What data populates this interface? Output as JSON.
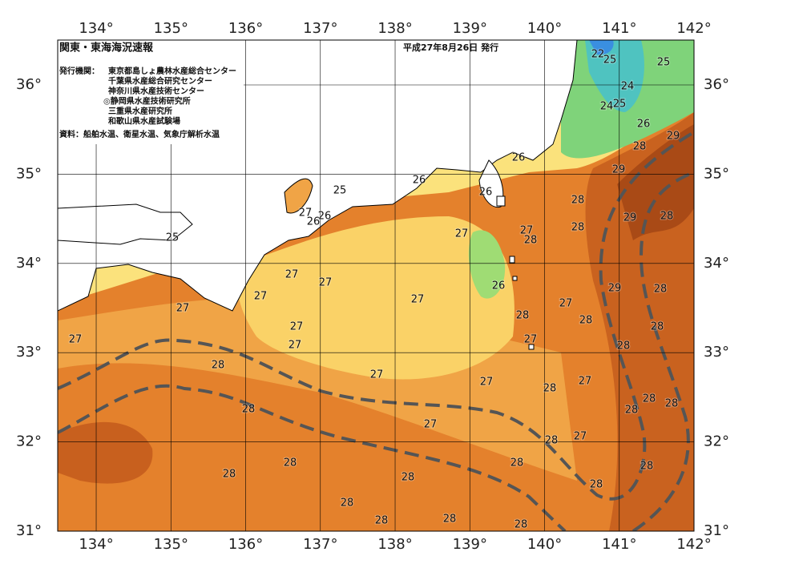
{
  "header": {
    "title": "関東・東海海況速報",
    "date": "平成27年8月26日 発行",
    "issuer_label": "発行機関：",
    "issuers": [
      "東京都島しょ農林水産総合センター",
      "千葉県水産総合研究センター",
      "神奈川県水産技術センター",
      "◎静岡県水産技術研究所",
      "三重県水産研究所",
      "和歌山県水産試験場"
    ],
    "source": "資料：船舶水温、衛星水温、気象庁解析水温"
  },
  "axes": {
    "longitude_labels": [
      "134°",
      "135°",
      "136°",
      "137°",
      "138°",
      "139°",
      "140°",
      "141°",
      "142°"
    ],
    "latitude_labels": [
      "31°",
      "32°",
      "33°",
      "34°",
      "35°",
      "36°"
    ]
  },
  "contour_labels": [
    22,
    25,
    25,
    24,
    24,
    25,
    26,
    28,
    29,
    29,
    26,
    26,
    26,
    25,
    27,
    26,
    26,
    25,
    27,
    27,
    28,
    28,
    28,
    29,
    28,
    27,
    27,
    26,
    29,
    28,
    27,
    27,
    27,
    27,
    28,
    28,
    28,
    27,
    27,
    27,
    27,
    28,
    28,
    27,
    27,
    27,
    28,
    28,
    28,
    28,
    28,
    27,
    27,
    28,
    28,
    28,
    28,
    28,
    28,
    28,
    28,
    28,
    28,
    28
  ]
}
